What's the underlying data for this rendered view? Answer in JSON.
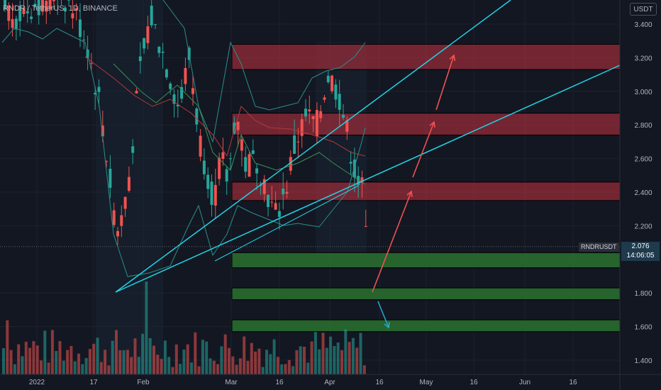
{
  "title": "RNDR / TetherUS, 1D, BINANCE",
  "unit": "USDT",
  "symbol_tag": "RNDRUSDT",
  "last_price": "2.076",
  "countdown": "14:06:05",
  "colors": {
    "background": "#131722",
    "up": "#26a69a",
    "down": "#ef5350",
    "trend": "#22d3e6",
    "resistance": "#c2313f",
    "support": "#2e7d32",
    "arrow_up": "#ef5350",
    "arrow_down": "#26a6c9",
    "band": "#2a8f8a",
    "ma": "#b23a3a"
  },
  "chart_data": {
    "type": "candlestick",
    "title": "RNDR / TetherUS, 1D, BINANCE",
    "x_tick_labels": [
      "2022",
      "17",
      "Feb",
      "Mar",
      "16",
      "Apr",
      "16",
      "May",
      "16",
      "Jun",
      "16"
    ],
    "y_tick_labels": [
      "3.400",
      "3.200",
      "3.000",
      "2.800",
      "2.600",
      "2.400",
      "2.200",
      "1.800",
      "1.600",
      "1.400"
    ],
    "ylim": [
      1.35,
      3.5
    ],
    "last_price": 2.076,
    "resistance_zones": [
      [
        3.13,
        3.28
      ],
      [
        2.74,
        2.87
      ],
      [
        2.35,
        2.46
      ]
    ],
    "support_zones": [
      [
        1.95,
        2.04
      ],
      [
        1.76,
        1.83
      ],
      [
        1.57,
        1.64
      ]
    ],
    "trendlines": [
      {
        "from": [
          "Jan 20",
          1.8
        ],
        "to": [
          "May 8",
          3.55
        ]
      },
      {
        "from": [
          "Jan 20",
          1.8
        ],
        "to": [
          "Jun 30",
          3.15
        ]
      }
    ],
    "projection_arrows": [
      "up",
      "up",
      "up",
      "up",
      "down"
    ],
    "grid": true
  }
}
